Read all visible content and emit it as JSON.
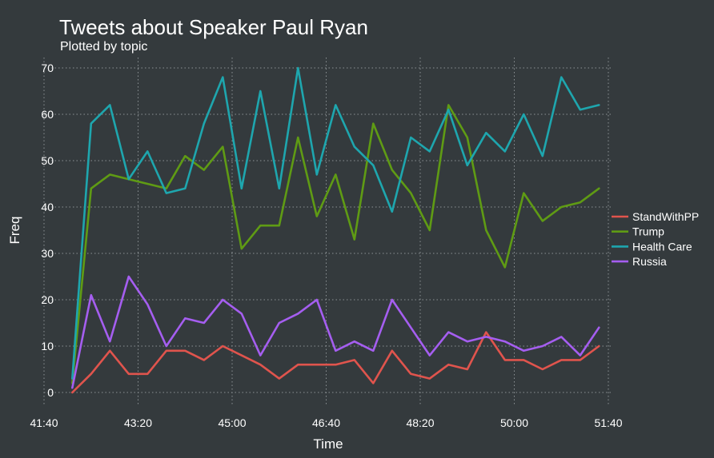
{
  "chart_data": {
    "type": "line",
    "title": "Tweets about Speaker Paul Ryan",
    "subtitle": "Plotted by topic",
    "xlabel": "Time",
    "ylabel": "Freq",
    "xlim": [
      "41:40",
      "51:40"
    ],
    "ylim": [
      0,
      70
    ],
    "x_ticks": [
      "41:40",
      "43:20",
      "45:00",
      "46:40",
      "48:20",
      "50:00",
      "51:40"
    ],
    "y_ticks": [
      0,
      10,
      20,
      30,
      40,
      50,
      60,
      70
    ],
    "grid": true,
    "legend_position": "right",
    "x": [
      "42:10",
      "42:30",
      "42:50",
      "43:10",
      "43:30",
      "43:50",
      "44:10",
      "44:30",
      "44:50",
      "45:10",
      "45:30",
      "45:50",
      "46:10",
      "46:30",
      "46:50",
      "47:10",
      "47:30",
      "47:50",
      "48:10",
      "48:30",
      "48:50",
      "49:10",
      "49:30",
      "49:50",
      "50:10",
      "50:30",
      "50:50",
      "51:10",
      "51:30"
    ],
    "series": [
      {
        "name": "StandWithPP",
        "color": "#e0544d",
        "values": [
          0,
          4,
          9,
          4,
          4,
          9,
          9,
          7,
          10,
          8,
          6,
          3,
          6,
          6,
          6,
          7,
          2,
          9,
          4,
          3,
          6,
          5,
          13,
          7,
          7,
          5,
          7,
          7,
          10
        ]
      },
      {
        "name": "Trump",
        "color": "#5f9b14",
        "values": [
          2,
          44,
          47,
          46,
          45,
          44,
          51,
          48,
          53,
          31,
          36,
          36,
          55,
          38,
          47,
          33,
          58,
          48,
          43,
          35,
          62,
          55,
          35,
          27,
          43,
          37,
          40,
          41,
          44
        ]
      },
      {
        "name": "Health Care",
        "color": "#1ea6ae",
        "values": [
          3,
          58,
          62,
          46,
          52,
          43,
          44,
          58,
          68,
          44,
          65,
          44,
          70,
          47,
          62,
          53,
          49,
          39,
          55,
          52,
          61,
          49,
          56,
          52,
          60,
          51,
          68,
          61,
          62
        ]
      },
      {
        "name": "Russia",
        "color": "#a55ef0",
        "values": [
          1,
          21,
          11,
          25,
          19,
          10,
          16,
          15,
          20,
          17,
          8,
          15,
          17,
          20,
          9,
          11,
          9,
          20,
          14,
          8,
          13,
          11,
          12,
          11,
          9,
          10,
          12,
          8,
          14
        ]
      }
    ]
  }
}
